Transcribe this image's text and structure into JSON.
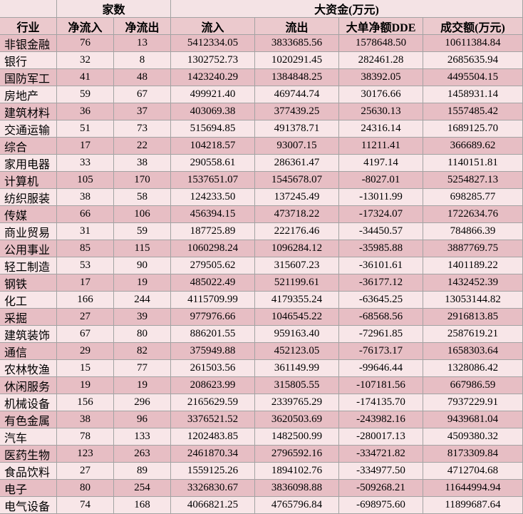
{
  "table": {
    "group_headers": [
      "家数",
      "大资金(万元)"
    ],
    "columns": [
      "行业",
      "净流入",
      "净流出",
      "流入",
      "流出",
      "大单净额DDE",
      "成交额(万元)"
    ],
    "rows": [
      [
        "非银金融",
        "76",
        "13",
        "5412334.05",
        "3833685.56",
        "1578648.50",
        "10611384.84"
      ],
      [
        "银行",
        "32",
        "8",
        "1302752.73",
        "1020291.45",
        "282461.28",
        "2685635.94"
      ],
      [
        "国防军工",
        "41",
        "48",
        "1423240.29",
        "1384848.25",
        "38392.05",
        "4495504.15"
      ],
      [
        "房地产",
        "59",
        "67",
        "499921.40",
        "469744.74",
        "30176.66",
        "1458931.14"
      ],
      [
        "建筑材料",
        "36",
        "37",
        "403069.38",
        "377439.25",
        "25630.13",
        "1557485.42"
      ],
      [
        "交通运输",
        "51",
        "73",
        "515694.85",
        "491378.71",
        "24316.14",
        "1689125.70"
      ],
      [
        "综合",
        "17",
        "22",
        "104218.57",
        "93007.15",
        "11211.41",
        "366689.62"
      ],
      [
        "家用电器",
        "33",
        "38",
        "290558.61",
        "286361.47",
        "4197.14",
        "1140151.81"
      ],
      [
        "计算机",
        "105",
        "170",
        "1537651.07",
        "1545678.07",
        "-8027.01",
        "5254827.13"
      ],
      [
        "纺织服装",
        "38",
        "58",
        "124233.50",
        "137245.49",
        "-13011.99",
        "698285.77"
      ],
      [
        "传媒",
        "66",
        "106",
        "456394.15",
        "473718.22",
        "-17324.07",
        "1722634.76"
      ],
      [
        "商业贸易",
        "31",
        "59",
        "187725.89",
        "222176.46",
        "-34450.57",
        "784866.39"
      ],
      [
        "公用事业",
        "85",
        "115",
        "1060298.24",
        "1096284.12",
        "-35985.88",
        "3887769.75"
      ],
      [
        "轻工制造",
        "53",
        "90",
        "279505.62",
        "315607.23",
        "-36101.61",
        "1401189.22"
      ],
      [
        "钢铁",
        "17",
        "19",
        "485022.49",
        "521199.61",
        "-36177.12",
        "1432452.39"
      ],
      [
        "化工",
        "166",
        "244",
        "4115709.99",
        "4179355.24",
        "-63645.25",
        "13053144.82"
      ],
      [
        "采掘",
        "27",
        "39",
        "977976.66",
        "1046545.22",
        "-68568.56",
        "2916813.85"
      ],
      [
        "建筑装饰",
        "67",
        "80",
        "886201.55",
        "959163.40",
        "-72961.85",
        "2587619.21"
      ],
      [
        "通信",
        "29",
        "82",
        "375949.88",
        "452123.05",
        "-76173.17",
        "1658303.64"
      ],
      [
        "农林牧渔",
        "15",
        "77",
        "261503.56",
        "361149.99",
        "-99646.44",
        "1328086.42"
      ],
      [
        "休闲服务",
        "19",
        "19",
        "208623.99",
        "315805.55",
        "-107181.56",
        "667986.59"
      ],
      [
        "机械设备",
        "156",
        "296",
        "2165629.59",
        "2339765.29",
        "-174135.70",
        "7937229.91"
      ],
      [
        "有色金属",
        "38",
        "96",
        "3376521.52",
        "3620503.69",
        "-243982.16",
        "9439681.04"
      ],
      [
        "汽车",
        "78",
        "133",
        "1202483.85",
        "1482500.99",
        "-280017.13",
        "4509380.32"
      ],
      [
        "医药生物",
        "123",
        "263",
        "2461870.34",
        "2796592.16",
        "-334721.82",
        "8173309.84"
      ],
      [
        "食品饮料",
        "27",
        "89",
        "1559125.26",
        "1894102.76",
        "-334977.50",
        "4712704.68"
      ],
      [
        "电子",
        "80",
        "254",
        "3326830.67",
        "3836098.88",
        "-509268.21",
        "11644994.94"
      ],
      [
        "电气设备",
        "74",
        "168",
        "4066821.25",
        "4765796.84",
        "-698975.60",
        "11899687.64"
      ]
    ]
  }
}
